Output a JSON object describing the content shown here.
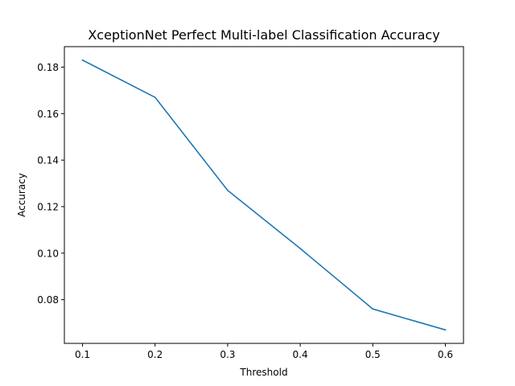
{
  "chart_data": {
    "type": "line",
    "title": "XceptionNet Perfect Multi-label Classification Accuracy",
    "xlabel": "Threshold",
    "ylabel": "Accuracy",
    "x": [
      0.1,
      0.2,
      0.3,
      0.4,
      0.5,
      0.6
    ],
    "series": [
      {
        "values": [
          0.183,
          0.167,
          0.127,
          0.102,
          0.076,
          0.067
        ]
      }
    ],
    "xlim": [
      0.075,
      0.625
    ],
    "ylim": [
      0.0612,
      0.1888
    ],
    "xticks": [
      "0.1",
      "0.2",
      "0.3",
      "0.4",
      "0.5",
      "0.6"
    ],
    "yticks": [
      "0.08",
      "0.10",
      "0.12",
      "0.14",
      "0.16",
      "0.18"
    ],
    "grid": false,
    "line_color": "#1f77b4"
  }
}
